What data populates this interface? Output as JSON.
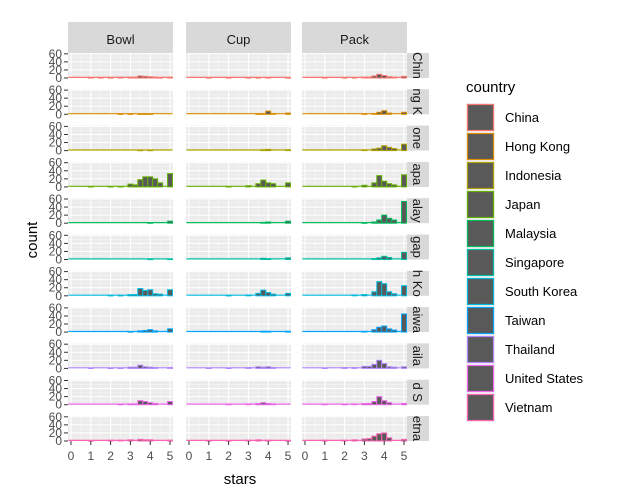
{
  "chart_data": {
    "type": "bar",
    "facet_cols": [
      "Bowl",
      "Cup",
      "Pack"
    ],
    "facet_rows": [
      "China",
      "Hong Kong",
      "Indonesia",
      "Japan",
      "Malaysia",
      "Singapore",
      "South Korea",
      "Taiwan",
      "Thailand",
      "United States",
      "Vietnam"
    ],
    "facet_row_strip_labels": [
      "Chin",
      "ng K",
      "one",
      "apa",
      "alay",
      "gap",
      "h Ko",
      "aiwa",
      "aila",
      "d S",
      "etna"
    ],
    "xlabel": "stars",
    "ylabel": "count",
    "xlim": [
      -0.15,
      5.15
    ],
    "ylim": [
      0,
      62
    ],
    "x_ticks": [
      "0",
      "1",
      "2",
      "3",
      "4",
      "5"
    ],
    "y_ticks": [
      "0",
      "20",
      "40",
      "60"
    ],
    "bar_width": 0.25,
    "legend_title": "country",
    "legend_placement": "right",
    "colors": {
      "China": "#F8766D",
      "Hong Kong": "#DB8E00",
      "Indonesia": "#AEA200",
      "Japan": "#64B200",
      "Malaysia": "#00BD5C",
      "Singapore": "#00C1A7",
      "South Korea": "#00BADE",
      "Taiwan": "#00A6FF",
      "Thailand": "#B385FF",
      "United States": "#EF67EB",
      "Vietnam": "#FF63B6"
    },
    "panel_bg": "#ebebeb",
    "strip_bg": "#d9d9d9",
    "legend_key_fill": "#595959",
    "series": [
      {
        "name": "China",
        "panels": {
          "Bowl": [
            [
              1.0,
              1
            ],
            [
              1.5,
              1
            ],
            [
              2.0,
              1
            ],
            [
              2.5,
              2
            ],
            [
              3.0,
              2
            ],
            [
              3.25,
              2
            ],
            [
              3.5,
              5
            ],
            [
              3.75,
              4
            ],
            [
              4.0,
              3
            ],
            [
              4.25,
              2
            ],
            [
              4.5,
              1
            ],
            [
              5.0,
              2
            ]
          ],
          "Cup": [
            [
              1.0,
              1
            ],
            [
              2.0,
              1
            ],
            [
              3.0,
              1
            ],
            [
              3.5,
              1
            ],
            [
              4.0,
              1
            ],
            [
              5.0,
              1
            ]
          ],
          "Pack": [
            [
              1.0,
              1
            ],
            [
              2.0,
              1
            ],
            [
              2.5,
              1
            ],
            [
              3.0,
              2
            ],
            [
              3.25,
              2
            ],
            [
              3.5,
              5
            ],
            [
              3.75,
              9
            ],
            [
              4.0,
              6
            ],
            [
              4.25,
              3
            ],
            [
              4.5,
              2
            ],
            [
              5.0,
              4
            ]
          ]
        }
      },
      {
        "name": "Hong Kong",
        "panels": {
          "Bowl": [
            [
              2.5,
              1
            ],
            [
              3.0,
              1
            ],
            [
              3.5,
              1
            ],
            [
              3.75,
              1
            ],
            [
              4.0,
              1
            ]
          ],
          "Cup": [
            [
              3.5,
              1
            ],
            [
              3.75,
              2
            ],
            [
              4.0,
              8
            ],
            [
              4.25,
              2
            ],
            [
              5.0,
              3
            ]
          ],
          "Pack": [
            [
              3.0,
              1
            ],
            [
              3.5,
              2
            ],
            [
              3.75,
              5
            ],
            [
              4.0,
              9
            ],
            [
              4.25,
              3
            ],
            [
              5.0,
              5
            ]
          ]
        }
      },
      {
        "name": "Indonesia",
        "panels": {
          "Bowl": [
            [
              3.5,
              1
            ],
            [
              4.0,
              1
            ]
          ],
          "Cup": [
            [
              3.75,
              2
            ],
            [
              4.0,
              3
            ],
            [
              5.0,
              2
            ]
          ],
          "Pack": [
            [
              3.0,
              2
            ],
            [
              3.5,
              4
            ],
            [
              3.75,
              6
            ],
            [
              4.0,
              12
            ],
            [
              4.25,
              8
            ],
            [
              4.5,
              5
            ],
            [
              5.0,
              16
            ]
          ]
        }
      },
      {
        "name": "Japan",
        "panels": {
          "Bowl": [
            [
              1.0,
              1
            ],
            [
              2.0,
              1
            ],
            [
              2.5,
              1
            ],
            [
              3.0,
              7
            ],
            [
              3.25,
              5
            ],
            [
              3.5,
              18
            ],
            [
              3.75,
              25
            ],
            [
              4.0,
              25
            ],
            [
              4.25,
              20
            ],
            [
              4.5,
              10
            ],
            [
              5.0,
              33
            ]
          ],
          "Cup": [
            [
              2.0,
              1
            ],
            [
              3.0,
              3
            ],
            [
              3.5,
              8
            ],
            [
              3.75,
              17
            ],
            [
              4.0,
              10
            ],
            [
              4.25,
              8
            ],
            [
              5.0,
              10
            ]
          ],
          "Pack": [
            [
              2.5,
              1
            ],
            [
              3.0,
              4
            ],
            [
              3.5,
              10
            ],
            [
              3.75,
              28
            ],
            [
              4.0,
              14
            ],
            [
              4.25,
              8
            ],
            [
              4.5,
              5
            ],
            [
              5.0,
              30
            ]
          ]
        }
      },
      {
        "name": "Malaysia",
        "panels": {
          "Bowl": [
            [
              4.0,
              1
            ],
            [
              5.0,
              5
            ]
          ],
          "Cup": [
            [
              3.75,
              2
            ],
            [
              4.0,
              3
            ],
            [
              5.0,
              5
            ]
          ],
          "Pack": [
            [
              3.0,
              1
            ],
            [
              3.5,
              3
            ],
            [
              3.75,
              8
            ],
            [
              4.0,
              20
            ],
            [
              4.25,
              12
            ],
            [
              4.5,
              8
            ],
            [
              5.0,
              54
            ]
          ]
        }
      },
      {
        "name": "Singapore",
        "panels": {
          "Bowl": [
            [
              4.0,
              1
            ],
            [
              5.0,
              1
            ]
          ],
          "Cup": [
            [
              3.75,
              3
            ],
            [
              4.0,
              2
            ],
            [
              5.0,
              4
            ]
          ],
          "Pack": [
            [
              3.5,
              2
            ],
            [
              3.75,
              4
            ],
            [
              4.0,
              8
            ],
            [
              4.25,
              5
            ],
            [
              5.0,
              18
            ]
          ]
        }
      },
      {
        "name": "South Korea",
        "panels": {
          "Bowl": [
            [
              2.0,
              1
            ],
            [
              2.5,
              1
            ],
            [
              3.0,
              3
            ],
            [
              3.25,
              3
            ],
            [
              3.5,
              18
            ],
            [
              3.75,
              13
            ],
            [
              4.0,
              15
            ],
            [
              4.25,
              5
            ],
            [
              4.5,
              4
            ],
            [
              5.0,
              15
            ]
          ],
          "Cup": [
            [
              2.0,
              1
            ],
            [
              3.0,
              2
            ],
            [
              3.5,
              6
            ],
            [
              3.75,
              14
            ],
            [
              4.0,
              8
            ],
            [
              4.25,
              4
            ],
            [
              5.0,
              6
            ]
          ],
          "Pack": [
            [
              2.5,
              2
            ],
            [
              3.0,
              3
            ],
            [
              3.5,
              10
            ],
            [
              3.75,
              35
            ],
            [
              4.0,
              30
            ],
            [
              4.25,
              10
            ],
            [
              4.5,
              5
            ],
            [
              5.0,
              25
            ]
          ]
        }
      },
      {
        "name": "Taiwan",
        "panels": {
          "Bowl": [
            [
              3.0,
              1
            ],
            [
              3.5,
              3
            ],
            [
              3.75,
              4
            ],
            [
              4.0,
              6
            ],
            [
              4.25,
              3
            ],
            [
              5.0,
              8
            ]
          ],
          "Cup": [
            [
              3.75,
              2
            ],
            [
              4.0,
              2
            ],
            [
              5.0,
              2
            ]
          ],
          "Pack": [
            [
              3.0,
              2
            ],
            [
              3.5,
              6
            ],
            [
              3.75,
              12
            ],
            [
              4.0,
              15
            ],
            [
              4.25,
              8
            ],
            [
              4.5,
              5
            ],
            [
              5.0,
              45
            ]
          ]
        }
      },
      {
        "name": "Thailand",
        "panels": {
          "Bowl": [
            [
              1.0,
              1
            ],
            [
              2.0,
              1
            ],
            [
              2.5,
              1
            ],
            [
              3.0,
              3
            ],
            [
              3.25,
              3
            ],
            [
              3.5,
              8
            ],
            [
              3.75,
              4
            ],
            [
              4.0,
              3
            ],
            [
              4.25,
              2
            ],
            [
              5.0,
              2
            ]
          ],
          "Cup": [
            [
              1.0,
              1
            ],
            [
              2.0,
              1
            ],
            [
              3.0,
              2
            ],
            [
              3.5,
              4
            ],
            [
              3.75,
              3
            ],
            [
              4.0,
              4
            ],
            [
              4.25,
              2
            ]
          ],
          "Pack": [
            [
              1.0,
              1
            ],
            [
              2.0,
              2
            ],
            [
              2.5,
              2
            ],
            [
              3.0,
              5
            ],
            [
              3.25,
              5
            ],
            [
              3.5,
              10
            ],
            [
              3.75,
              20
            ],
            [
              4.0,
              12
            ],
            [
              4.25,
              4
            ],
            [
              4.5,
              3
            ],
            [
              5.0,
              4
            ]
          ]
        }
      },
      {
        "name": "United States",
        "panels": {
          "Bowl": [
            [
              2.5,
              1
            ],
            [
              3.0,
              2
            ],
            [
              3.25,
              2
            ],
            [
              3.5,
              10
            ],
            [
              3.75,
              8
            ],
            [
              4.0,
              5
            ],
            [
              4.25,
              3
            ],
            [
              5.0,
              8
            ]
          ],
          "Cup": [
            [
              2.0,
              1
            ],
            [
              3.0,
              2
            ],
            [
              3.5,
              3
            ],
            [
              3.75,
              5
            ],
            [
              4.0,
              3
            ],
            [
              4.25,
              2
            ]
          ],
          "Pack": [
            [
              1.0,
              1
            ],
            [
              2.0,
              1
            ],
            [
              2.5,
              2
            ],
            [
              3.0,
              3
            ],
            [
              3.25,
              3
            ],
            [
              3.5,
              8
            ],
            [
              3.75,
              20
            ],
            [
              4.0,
              10
            ],
            [
              4.25,
              5
            ],
            [
              5.0,
              3
            ]
          ]
        }
      },
      {
        "name": "Vietnam",
        "panels": {
          "Bowl": [
            [
              1.0,
              1
            ],
            [
              2.0,
              2
            ],
            [
              2.5,
              2
            ],
            [
              3.0,
              3
            ],
            [
              3.5,
              4
            ],
            [
              3.75,
              3
            ],
            [
              4.0,
              3
            ],
            [
              5.0,
              2
            ]
          ],
          "Cup": [
            [
              1.0,
              1
            ],
            [
              2.0,
              1
            ],
            [
              3.0,
              2
            ],
            [
              3.5,
              3
            ],
            [
              4.0,
              2
            ],
            [
              5.0,
              1
            ]
          ],
          "Pack": [
            [
              1.0,
              2
            ],
            [
              2.0,
              2
            ],
            [
              2.5,
              3
            ],
            [
              3.0,
              5
            ],
            [
              3.25,
              6
            ],
            [
              3.5,
              12
            ],
            [
              3.75,
              18
            ],
            [
              4.0,
              20
            ],
            [
              4.25,
              8
            ],
            [
              5.0,
              4
            ]
          ]
        }
      }
    ]
  }
}
